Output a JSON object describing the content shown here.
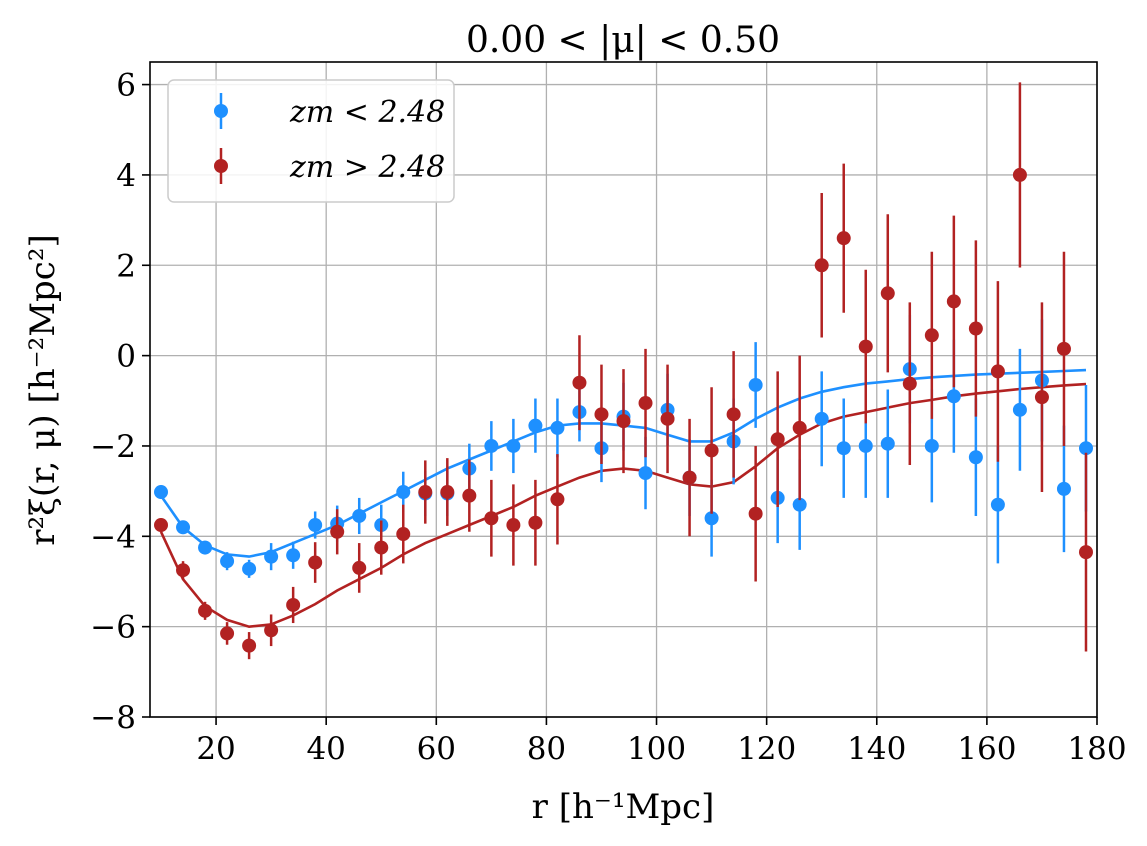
{
  "chart_data": {
    "type": "scatter",
    "title": "0.00 < |μ| < 0.50",
    "xlabel": "r [h⁻¹Mpc]",
    "ylabel": "r²ξ(r, μ) [h⁻²Mpc²]",
    "xlim": [
      8,
      180
    ],
    "ylim": [
      -8,
      6.5
    ],
    "xticks": [
      20,
      40,
      60,
      80,
      100,
      120,
      140,
      160,
      180
    ],
    "yticks": [
      6,
      4,
      2,
      0,
      -2,
      -4,
      -6,
      -8
    ],
    "xtick_labels": [
      "20",
      "40",
      "60",
      "80",
      "100",
      "120",
      "140",
      "160",
      "180"
    ],
    "ytick_labels": [
      "6",
      "4",
      "2",
      "0",
      "−2",
      "−4",
      "−6",
      "−8"
    ],
    "grid": true,
    "legend_position": "top-left",
    "series": [
      {
        "name": "z_m < 2.48",
        "label": "zm < 2.48",
        "color": "#1e90ff",
        "x": [
          10,
          14,
          18,
          22,
          26,
          30,
          34,
          38,
          42,
          46,
          50,
          54,
          58,
          62,
          66,
          70,
          74,
          78,
          82,
          86,
          90,
          94,
          98,
          102,
          106,
          110,
          114,
          118,
          122,
          126,
          130,
          134,
          138,
          142,
          146,
          150,
          154,
          158,
          162,
          166,
          170,
          174,
          178
        ],
        "y": [
          -3.02,
          -3.8,
          -4.25,
          -4.55,
          -4.72,
          -4.45,
          -4.42,
          -3.75,
          -3.72,
          -3.55,
          -3.75,
          -3.02,
          -3.05,
          -3.05,
          -2.5,
          -2.0,
          -2.0,
          -1.55,
          -1.6,
          -1.25,
          -2.05,
          -1.35,
          -2.6,
          -1.2,
          -2.7,
          -3.6,
          -1.9,
          -0.65,
          -3.15,
          -3.3,
          -1.4,
          -2.05,
          -2.0,
          -1.95,
          -0.3,
          -2.0,
          -0.9,
          -2.25,
          -3.3,
          -1.2,
          -0.55,
          -2.95,
          -2.05
        ],
        "err": [
          0.15,
          0.15,
          0.15,
          0.2,
          0.2,
          0.3,
          0.3,
          0.3,
          0.4,
          0.4,
          0.45,
          0.45,
          0.5,
          0.5,
          0.55,
          0.55,
          0.6,
          0.6,
          0.65,
          0.65,
          0.75,
          0.75,
          0.8,
          0.8,
          0.85,
          0.85,
          0.95,
          0.95,
          1.0,
          1.0,
          1.05,
          1.1,
          1.15,
          1.2,
          1.2,
          1.25,
          1.25,
          1.3,
          1.3,
          1.35,
          1.35,
          1.4,
          1.4
        ]
      },
      {
        "name": "z_m > 2.48",
        "label": "zm > 2.48",
        "color": "#b22222",
        "x": [
          10,
          14,
          18,
          22,
          26,
          30,
          34,
          38,
          42,
          46,
          50,
          54,
          58,
          62,
          66,
          70,
          74,
          78,
          82,
          86,
          90,
          94,
          98,
          102,
          106,
          110,
          114,
          118,
          122,
          126,
          130,
          134,
          138,
          142,
          146,
          150,
          154,
          158,
          162,
          166,
          170,
          174,
          178
        ],
        "y": [
          -3.75,
          -4.75,
          -5.65,
          -6.15,
          -6.42,
          -6.08,
          -5.52,
          -4.58,
          -3.9,
          -4.7,
          -4.25,
          -3.95,
          -3.02,
          -3.02,
          -3.1,
          -3.6,
          -3.75,
          -3.7,
          -3.18,
          -0.6,
          -1.3,
          -1.45,
          -1.05,
          -1.4,
          -2.7,
          -2.1,
          -1.3,
          -3.5,
          -1.85,
          -1.6,
          2.0,
          2.6,
          0.2,
          1.38,
          -0.62,
          0.45,
          1.2,
          0.6,
          -0.35,
          4.0,
          -0.92,
          0.15,
          -4.35
        ],
        "err": [
          0.15,
          0.2,
          0.2,
          0.25,
          0.3,
          0.35,
          0.4,
          0.45,
          0.5,
          0.55,
          0.6,
          0.65,
          0.7,
          0.75,
          0.8,
          0.85,
          0.9,
          0.95,
          1.0,
          1.05,
          1.1,
          1.15,
          1.2,
          1.2,
          1.3,
          1.4,
          1.4,
          1.5,
          1.5,
          1.6,
          1.6,
          1.65,
          1.7,
          1.75,
          1.8,
          1.85,
          1.9,
          1.95,
          2.0,
          2.05,
          2.1,
          2.15,
          2.2
        ]
      }
    ],
    "model_lines": [
      {
        "name": "model z_m < 2.48",
        "color": "#1e90ff",
        "x": [
          10,
          14,
          18,
          22,
          26,
          30,
          34,
          38,
          42,
          46,
          50,
          54,
          58,
          62,
          66,
          70,
          74,
          78,
          82,
          86,
          90,
          94,
          98,
          102,
          106,
          110,
          114,
          118,
          122,
          126,
          130,
          134,
          138,
          142,
          146,
          150,
          154,
          158,
          162,
          166,
          170,
          174,
          178
        ],
        "y": [
          -3.1,
          -3.8,
          -4.2,
          -4.4,
          -4.45,
          -4.35,
          -4.15,
          -3.95,
          -3.75,
          -3.5,
          -3.25,
          -3.0,
          -2.75,
          -2.5,
          -2.3,
          -2.1,
          -1.9,
          -1.7,
          -1.55,
          -1.5,
          -1.5,
          -1.55,
          -1.6,
          -1.75,
          -1.9,
          -1.9,
          -1.7,
          -1.4,
          -1.15,
          -0.95,
          -0.8,
          -0.7,
          -0.62,
          -0.57,
          -0.52,
          -0.48,
          -0.45,
          -0.42,
          -0.4,
          -0.38,
          -0.36,
          -0.34,
          -0.32
        ]
      },
      {
        "name": "model z_m > 2.48",
        "color": "#b22222",
        "x": [
          10,
          14,
          18,
          22,
          26,
          30,
          34,
          38,
          42,
          46,
          50,
          54,
          58,
          62,
          66,
          70,
          74,
          78,
          82,
          86,
          90,
          94,
          98,
          102,
          106,
          110,
          114,
          118,
          122,
          126,
          130,
          134,
          138,
          142,
          146,
          150,
          154,
          158,
          162,
          166,
          170,
          174,
          178
        ],
        "y": [
          -3.9,
          -4.95,
          -5.55,
          -5.85,
          -6.0,
          -5.95,
          -5.75,
          -5.5,
          -5.2,
          -4.95,
          -4.7,
          -4.4,
          -4.15,
          -3.95,
          -3.75,
          -3.55,
          -3.35,
          -3.1,
          -2.9,
          -2.7,
          -2.55,
          -2.5,
          -2.55,
          -2.7,
          -2.85,
          -2.9,
          -2.8,
          -2.45,
          -2.05,
          -1.75,
          -1.5,
          -1.35,
          -1.25,
          -1.15,
          -1.05,
          -0.98,
          -0.9,
          -0.84,
          -0.79,
          -0.74,
          -0.7,
          -0.66,
          -0.63
        ]
      }
    ]
  }
}
